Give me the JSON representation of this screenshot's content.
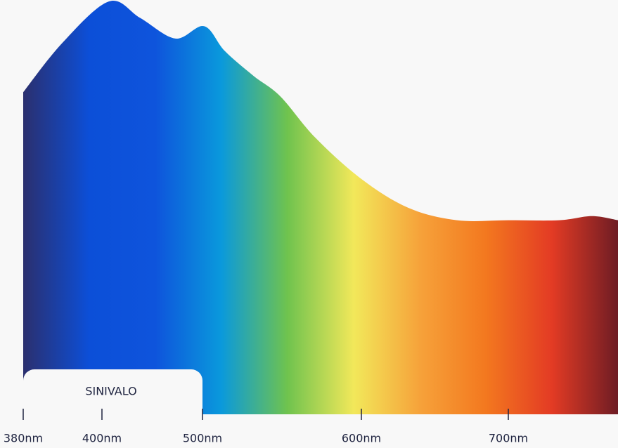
{
  "chart_data": {
    "type": "area",
    "annotation": "SINIVALO",
    "x": [
      380,
      390,
      407,
      438,
      473,
      501,
      514,
      532,
      549,
      571,
      600,
      632,
      665,
      700,
      737,
      761,
      780
    ],
    "values": [
      78,
      90,
      100,
      96,
      91,
      94,
      88,
      82,
      77,
      67,
      57,
      50,
      47,
      47,
      47,
      48,
      47
    ],
    "ylim": [
      0,
      100
    ],
    "xlim": [
      380,
      780
    ],
    "xticks": [
      {
        "value": 380,
        "label": "380nm"
      },
      {
        "value": 400,
        "label": "400nm"
      },
      {
        "value": 500,
        "label": "500nm"
      },
      {
        "value": 600,
        "label": "600nm"
      },
      {
        "value": 700,
        "label": "700nm"
      }
    ],
    "colors": [
      "#2b2f6e",
      "#0c4fd8",
      "#0e54dc",
      "#0a99dc",
      "#6fc34e",
      "#f2e85a",
      "#f6a23a",
      "#f3781f",
      "#e33b24",
      "#6e1c24"
    ]
  }
}
